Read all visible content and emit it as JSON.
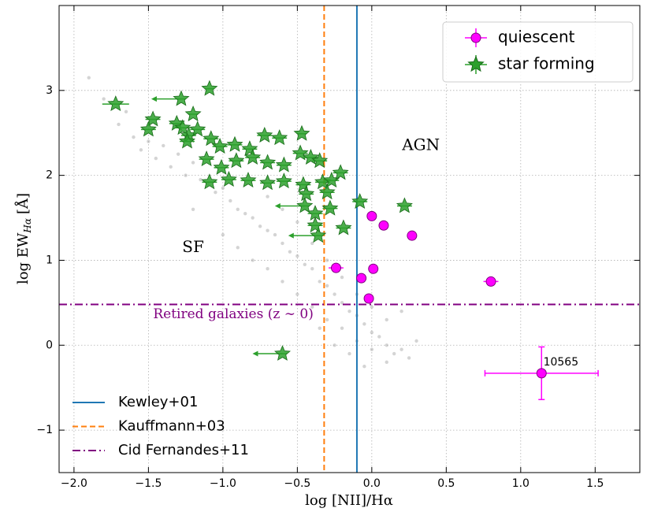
{
  "chart_data": {
    "type": "scatter",
    "xlabel": "log [NII]/Hα",
    "ylabel": {
      "main": "log EW",
      "sub": "Hα",
      "unit": "[Å]"
    },
    "xlim": [
      -2.1,
      1.8
    ],
    "ylim": [
      -1.5,
      4.0
    ],
    "xticks": [
      {
        "value": -2.0,
        "label": "−2.0"
      },
      {
        "value": -1.5,
        "label": "−1.5"
      },
      {
        "value": -1.0,
        "label": "−1.0"
      },
      {
        "value": -0.5,
        "label": "−0.5"
      },
      {
        "value": 0.0,
        "label": "0.0"
      },
      {
        "value": 0.5,
        "label": "0.5"
      },
      {
        "value": 1.0,
        "label": "1.0"
      },
      {
        "value": 1.5,
        "label": "1.5"
      }
    ],
    "yticks": [
      {
        "value": -1,
        "label": "−1"
      },
      0,
      1,
      2,
      3
    ],
    "grid": true,
    "background": {
      "color": "#aaaaaa",
      "x": [
        -1.9,
        -1.8,
        -1.7,
        -1.65,
        -1.6,
        -1.55,
        -1.5,
        -1.45,
        -1.4,
        -1.35,
        -1.3,
        -1.25,
        -1.2,
        -1.15,
        -1.1,
        -1.05,
        -1.0,
        -0.95,
        -0.9,
        -0.85,
        -0.8,
        -0.75,
        -0.7,
        -0.65,
        -0.6,
        -0.55,
        -0.5,
        -0.45,
        -0.4,
        -0.35,
        -0.3,
        -0.25,
        -0.2,
        -0.15,
        -0.1,
        -0.05,
        0.0,
        0.05,
        0.1,
        0.15,
        0.2,
        0.25,
        0.3,
        -1.2,
        -1.0,
        -0.9,
        -0.8,
        -0.7,
        -0.6,
        -0.5,
        -0.4,
        -0.3,
        -0.2,
        -0.1,
        0.0,
        0.1,
        -0.6,
        -0.4,
        -0.2,
        0.0,
        -0.7,
        -0.5,
        -0.3,
        -0.1,
        0.1,
        0.2,
        -0.35,
        -0.25,
        -0.15,
        -0.05
      ],
      "values": [
        3.15,
        2.9,
        2.6,
        2.75,
        2.45,
        2.3,
        2.4,
        2.2,
        2.35,
        2.1,
        2.25,
        2.0,
        2.15,
        1.95,
        1.9,
        1.8,
        1.85,
        1.7,
        1.6,
        1.55,
        1.5,
        1.4,
        1.35,
        1.3,
        1.2,
        1.1,
        1.05,
        0.95,
        0.9,
        0.75,
        0.7,
        0.6,
        0.5,
        0.4,
        0.35,
        0.25,
        0.15,
        0.1,
        0.0,
        -0.1,
        -0.05,
        -0.15,
        0.05,
        1.6,
        1.3,
        1.15,
        1.0,
        0.9,
        0.75,
        0.6,
        0.45,
        0.3,
        0.2,
        0.05,
        -0.05,
        -0.2,
        1.6,
        1.2,
        0.8,
        0.45,
        1.75,
        1.45,
        1.0,
        0.6,
        0.3,
        0.4,
        0.2,
        0.0,
        -0.1,
        -0.25
      ]
    },
    "series": [
      {
        "name": "quiescent",
        "color": "#ff00ff",
        "marker": "circle",
        "x": [
          0.0,
          0.08,
          0.27,
          -0.24,
          0.01,
          -0.07,
          -0.02,
          0.8,
          1.14
        ],
        "values": [
          1.52,
          1.41,
          1.29,
          0.91,
          0.9,
          0.79,
          0.55,
          0.75,
          -0.33
        ],
        "xerr": [
          0.02,
          0.02,
          0.02,
          0.05,
          0.02,
          0.03,
          0.02,
          0.05,
          0.38
        ],
        "yerr": [
          0.03,
          0.03,
          0.03,
          0.03,
          0.03,
          0.03,
          0.03,
          0.03,
          0.31
        ]
      },
      {
        "name": "star forming",
        "color": "#2ca02c",
        "marker": "star",
        "x": [
          -1.72,
          -1.09,
          -1.28,
          -1.47,
          -1.5,
          -1.31,
          -1.27,
          -1.23,
          -1.2,
          -1.17,
          -1.24,
          -1.08,
          -1.02,
          -0.92,
          -0.82,
          -0.72,
          -0.62,
          -0.47,
          -1.11,
          -1.01,
          -0.91,
          -0.8,
          -0.7,
          -0.59,
          -0.48,
          -0.41,
          -0.35,
          -1.09,
          -0.96,
          -0.83,
          -0.7,
          -0.59,
          -0.46,
          -0.33,
          -0.27,
          -0.21,
          -0.3,
          -0.44,
          -0.08,
          -0.28,
          -0.45,
          0.22,
          -0.38,
          -0.19,
          -0.36,
          -0.6,
          -0.38
        ],
        "values": [
          2.84,
          3.02,
          2.9,
          2.66,
          2.54,
          2.61,
          2.56,
          2.47,
          2.72,
          2.54,
          2.4,
          2.43,
          2.34,
          2.36,
          2.31,
          2.47,
          2.44,
          2.49,
          2.19,
          2.09,
          2.17,
          2.21,
          2.15,
          2.12,
          2.26,
          2.21,
          2.17,
          1.92,
          1.95,
          1.94,
          1.91,
          1.93,
          1.89,
          1.92,
          1.94,
          2.03,
          1.8,
          1.78,
          1.69,
          1.61,
          1.64,
          1.64,
          1.55,
          1.38,
          1.29,
          -0.1,
          1.41
        ],
        "xerr": [
          0.09,
          0.03,
          0.03,
          0.05,
          0.05,
          0.05,
          0.05,
          0.05,
          0.03,
          0.05,
          0.05,
          0.05,
          0.05,
          0.05,
          0.05,
          0.05,
          0.05,
          0.03,
          0.05,
          0.05,
          0.05,
          0.05,
          0.05,
          0.05,
          0.05,
          0.05,
          0.05,
          0.05,
          0.05,
          0.05,
          0.05,
          0.05,
          0.05,
          0.05,
          0.05,
          0.05,
          0.05,
          0.05,
          0.05,
          0.05,
          0.03,
          0.05,
          0.05,
          0.05,
          0.03,
          0.03,
          0.05
        ],
        "upper_limit": [
          false,
          false,
          true,
          false,
          false,
          false,
          false,
          false,
          false,
          false,
          false,
          false,
          false,
          false,
          false,
          false,
          false,
          false,
          false,
          false,
          false,
          false,
          false,
          false,
          false,
          false,
          false,
          false,
          false,
          false,
          false,
          false,
          false,
          false,
          false,
          false,
          false,
          false,
          false,
          false,
          true,
          false,
          false,
          false,
          true,
          true,
          false
        ]
      }
    ],
    "vlines": [
      {
        "name": "Kewley+01",
        "x": -0.1,
        "color": "#1f77b4",
        "style": "solid"
      },
      {
        "name": "Kauffmann+03",
        "x": -0.32,
        "color": "#ff7f0e",
        "style": "dashed"
      }
    ],
    "hlines": [
      {
        "name": "Cid Fernandes+11",
        "y": 0.48,
        "color": "#800080",
        "style": "dashdot"
      }
    ],
    "annotations": [
      {
        "text": "SF",
        "x": -1.2,
        "y": 1.15
      },
      {
        "text": "AGN",
        "x": 0.33,
        "y": 2.35
      },
      {
        "text": "Retired galaxies (z ∼ 0)",
        "x": -0.93,
        "y": 0.36,
        "color": "#800080"
      },
      {
        "text": "10565",
        "x": 1.27,
        "y": -0.2
      }
    ],
    "legend": "upper right",
    "legend2": "lower left"
  }
}
